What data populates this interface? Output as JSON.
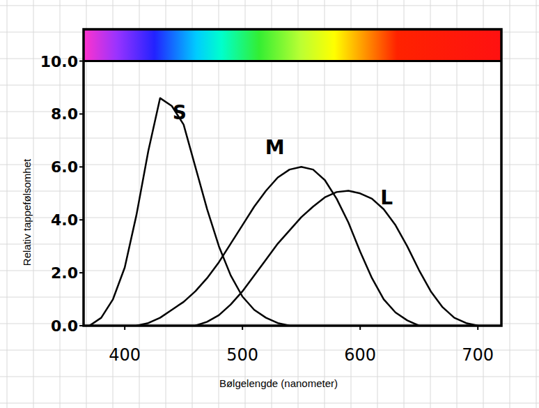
{
  "chart_data": {
    "type": "line",
    "x_label": "Bølgelengde (nanometer)",
    "y_label": "Relativ tappefølsomhet",
    "x": [
      370,
      380,
      390,
      400,
      410,
      420,
      430,
      440,
      450,
      460,
      470,
      480,
      490,
      500,
      510,
      520,
      530,
      540,
      550,
      560,
      570,
      580,
      590,
      600,
      610,
      620,
      630,
      640,
      650,
      660,
      670,
      680,
      690,
      700,
      710
    ],
    "series": [
      {
        "name": "S",
        "color": "#000000",
        "values": [
          0.0,
          0.3,
          1.0,
          2.2,
          4.2,
          6.6,
          8.6,
          8.3,
          7.6,
          6.0,
          4.4,
          3.0,
          1.9,
          1.1,
          0.6,
          0.3,
          0.1,
          0.0,
          null,
          null,
          null,
          null,
          null,
          null,
          null,
          null,
          null,
          null,
          null,
          null,
          null,
          null,
          null,
          null,
          null
        ]
      },
      {
        "name": "M",
        "color": "#000000",
        "values": [
          null,
          null,
          null,
          null,
          0.0,
          0.1,
          0.3,
          0.6,
          0.9,
          1.3,
          1.8,
          2.4,
          3.1,
          3.8,
          4.5,
          5.1,
          5.6,
          5.9,
          6.0,
          5.9,
          5.5,
          4.8,
          3.9,
          2.8,
          1.8,
          1.0,
          0.5,
          0.2,
          0.0,
          null,
          null,
          null,
          null,
          null,
          null
        ]
      },
      {
        "name": "L",
        "color": "#000000",
        "values": [
          null,
          null,
          null,
          null,
          null,
          null,
          null,
          null,
          null,
          0.0,
          0.15,
          0.4,
          0.8,
          1.3,
          1.9,
          2.5,
          3.1,
          3.6,
          4.1,
          4.5,
          4.85,
          5.05,
          5.1,
          5.0,
          4.8,
          4.4,
          3.8,
          3.0,
          2.1,
          1.3,
          0.7,
          0.3,
          0.1,
          0.0,
          null
        ]
      }
    ],
    "xlim": [
      365,
      720
    ],
    "ylim": [
      0,
      11.2
    ],
    "xticks": [
      400,
      500,
      600,
      700
    ],
    "yticks": [
      {
        "value": 0,
        "label": "0.0"
      },
      {
        "value": 2,
        "label": "2.0"
      },
      {
        "value": 4,
        "label": "4.0"
      },
      {
        "value": 6,
        "label": "6.0"
      },
      {
        "value": 8,
        "label": "8.0"
      },
      {
        "value": 10,
        "label": "10.0"
      }
    ],
    "grid": false
  }
}
